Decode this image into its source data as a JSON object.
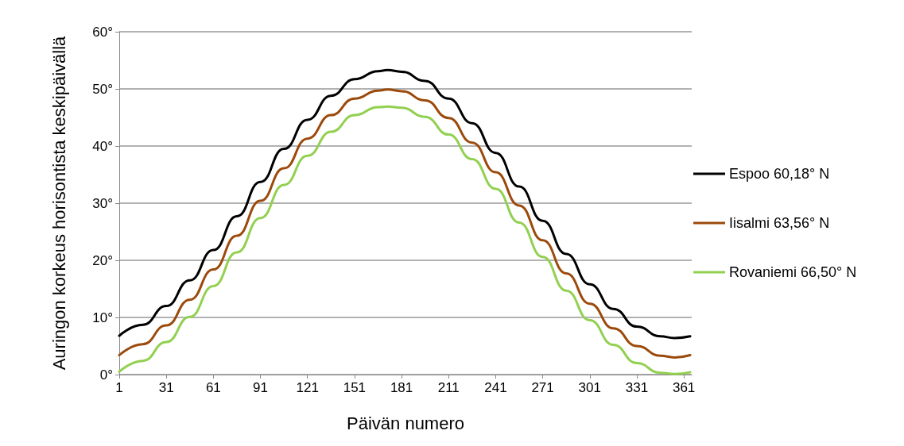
{
  "chart_data": {
    "type": "line",
    "xlabel": "Päivän numero",
    "ylabel": "Auringon korkeus horisontista keskipäivällä",
    "x": [
      1,
      16,
      31,
      46,
      61,
      76,
      91,
      106,
      121,
      136,
      151,
      166,
      172,
      181,
      196,
      211,
      226,
      241,
      256,
      271,
      286,
      301,
      316,
      331,
      346,
      355,
      365
    ],
    "series": [
      {
        "name": "Espoo 60,18° N",
        "color": "#000000",
        "values": [
          6.8,
          8.7,
          12.0,
          16.5,
          21.8,
          27.7,
          33.7,
          39.5,
          44.6,
          48.8,
          51.7,
          53.1,
          53.3,
          53.0,
          51.4,
          48.3,
          44.0,
          38.8,
          32.9,
          26.9,
          21.1,
          15.8,
          11.5,
          8.4,
          6.7,
          6.4,
          6.7
        ]
      },
      {
        "name": "Iisalmi 63,56° N",
        "color": "#9c4a0c",
        "values": [
          3.4,
          5.3,
          8.6,
          13.1,
          18.4,
          24.3,
          30.4,
          36.1,
          41.3,
          45.4,
          48.3,
          49.7,
          49.9,
          49.6,
          48.0,
          44.9,
          40.6,
          35.4,
          29.6,
          23.5,
          17.7,
          12.4,
          8.1,
          5.0,
          3.3,
          3.0,
          3.4
        ]
      },
      {
        "name": "Rovaniemi 66,50° N",
        "color": "#92d050",
        "values": [
          0.5,
          2.4,
          5.7,
          10.1,
          15.5,
          21.4,
          27.4,
          33.2,
          38.3,
          42.5,
          45.4,
          46.8,
          46.9,
          46.7,
          45.1,
          42.0,
          37.7,
          32.5,
          26.6,
          20.6,
          14.7,
          9.5,
          5.2,
          2.0,
          0.3,
          0.1,
          0.4
        ]
      }
    ],
    "xlim": [
      1,
      366
    ],
    "xticks": [
      1,
      31,
      61,
      91,
      121,
      151,
      181,
      211,
      241,
      271,
      301,
      331,
      361
    ],
    "ylim": [
      0,
      60
    ],
    "yticks": [
      {
        "value": 0,
        "label": "0°"
      },
      {
        "value": 10,
        "label": "10°"
      },
      {
        "value": 20,
        "label": "20°"
      },
      {
        "value": 30,
        "label": "30°"
      },
      {
        "value": 40,
        "label": "40°"
      },
      {
        "value": 50,
        "label": "50°"
      },
      {
        "value": 60,
        "label": "60°"
      }
    ],
    "grid": "y",
    "legend": "right",
    "marker": "none",
    "line_style": "solid"
  }
}
